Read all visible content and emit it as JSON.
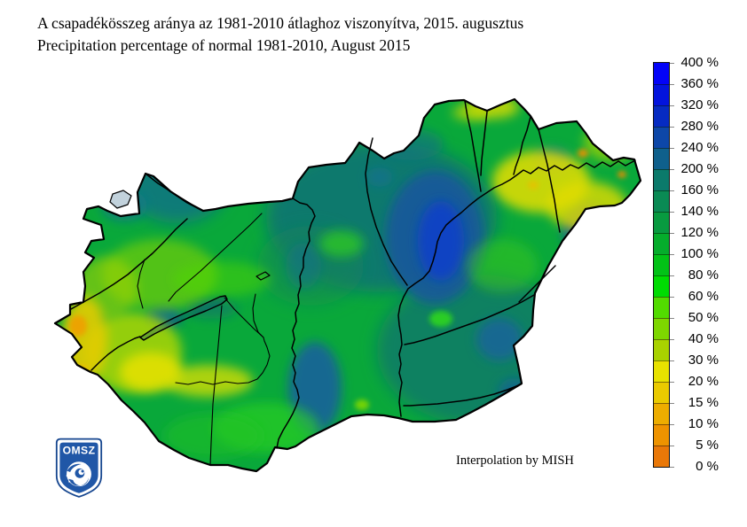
{
  "header": {
    "title_hu": "A csapadékösszeg aránya az 1981-2010 átlaghoz viszonyítva, 2015. augusztus",
    "title_en": "Precipitation percentage of normal 1981-2010, August 2015"
  },
  "map": {
    "region": "Hungary",
    "attribution": "Interpolation by MISH"
  },
  "logo": {
    "text": "OMSZ"
  },
  "legend": {
    "unit": "%",
    "labels": [
      "400 %",
      "360 %",
      "320 %",
      "280 %",
      "240 %",
      "200 %",
      "160 %",
      "140 %",
      "120 %",
      "100 %",
      "80 %",
      "60 %",
      "50 %",
      "40 %",
      "30 %",
      "20 %",
      "15 %",
      "10 %",
      "5 %",
      "0 %"
    ],
    "scale_breaks": [
      400,
      360,
      320,
      280,
      240,
      200,
      160,
      140,
      120,
      100,
      80,
      60,
      50,
      40,
      30,
      20,
      15,
      10,
      5,
      0
    ],
    "band_colors": [
      "#0303f8",
      "#0314dd",
      "#062bc2",
      "#0d47a8",
      "#0f608c",
      "#0b7a6b",
      "#0a8a54",
      "#089a40",
      "#05ad2c",
      "#02c217",
      "#00dc02",
      "#52dc00",
      "#7ed700",
      "#a9d200",
      "#e8e200",
      "#eaca00",
      "#edad00",
      "#ee9300",
      "#e97808"
    ]
  }
}
